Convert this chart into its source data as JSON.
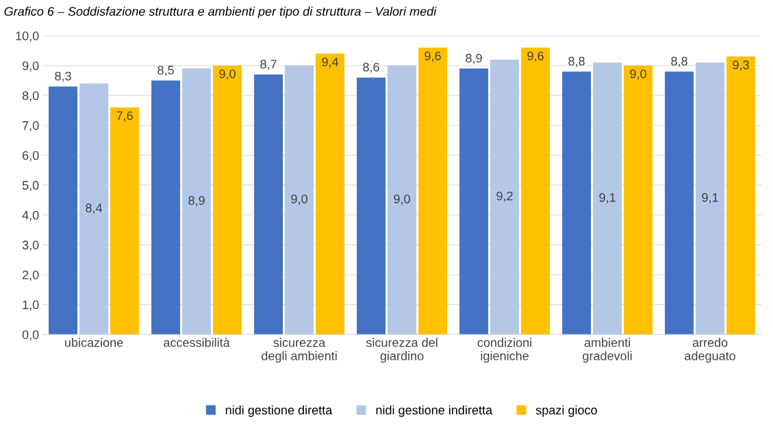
{
  "chart_data": {
    "type": "bar",
    "title": "Grafico 6 – Soddisfazione struttura e ambienti per tipo di struttura – Valori medi",
    "categories": [
      "ubicazione",
      "accessibilità",
      "sicurezza\ndegli ambienti",
      "sicurezza del\ngiardino",
      "condizioni\nigieniche",
      "ambienti\ngradevoli",
      "arredo\nadeguato"
    ],
    "series": [
      {
        "name": "nidi gestione diretta",
        "color": "#4472c4",
        "values": [
          8.3,
          8.5,
          8.7,
          8.6,
          8.9,
          8.8,
          8.8
        ],
        "value_labels": [
          "8,3",
          "8,5",
          "8,7",
          "8,6",
          "8,9",
          "8,8",
          "8,8"
        ]
      },
      {
        "name": "nidi gestione indiretta",
        "color": "#b4c7e7",
        "values": [
          8.4,
          8.9,
          9.0,
          9.0,
          9.2,
          9.1,
          9.1
        ],
        "value_labels": [
          "8,4",
          "8,9",
          "9,0",
          "9,0",
          "9,2",
          "9,1",
          "9,1"
        ]
      },
      {
        "name": "spazi gioco",
        "color": "#ffc000",
        "values": [
          7.6,
          9.0,
          9.4,
          9.6,
          9.6,
          9.0,
          9.3
        ],
        "value_labels": [
          "7,6",
          "9,0",
          "9,4",
          "9,6",
          "9,6",
          "9,0",
          "9,3"
        ]
      }
    ],
    "ylim": [
      0,
      10
    ],
    "yticks": [
      {
        "value": 0,
        "label": "0,0"
      },
      {
        "value": 1,
        "label": "1,0"
      },
      {
        "value": 2,
        "label": "2,0"
      },
      {
        "value": 3,
        "label": "3,0"
      },
      {
        "value": 4,
        "label": "4,0"
      },
      {
        "value": 5,
        "label": "5,0"
      },
      {
        "value": 6,
        "label": "6,0"
      },
      {
        "value": 7,
        "label": "7,0"
      },
      {
        "value": 8,
        "label": "8,0"
      },
      {
        "value": 9,
        "label": "9,0"
      },
      {
        "value": 10,
        "label": "10,0"
      }
    ],
    "grid": "y",
    "legend": "bottom"
  }
}
